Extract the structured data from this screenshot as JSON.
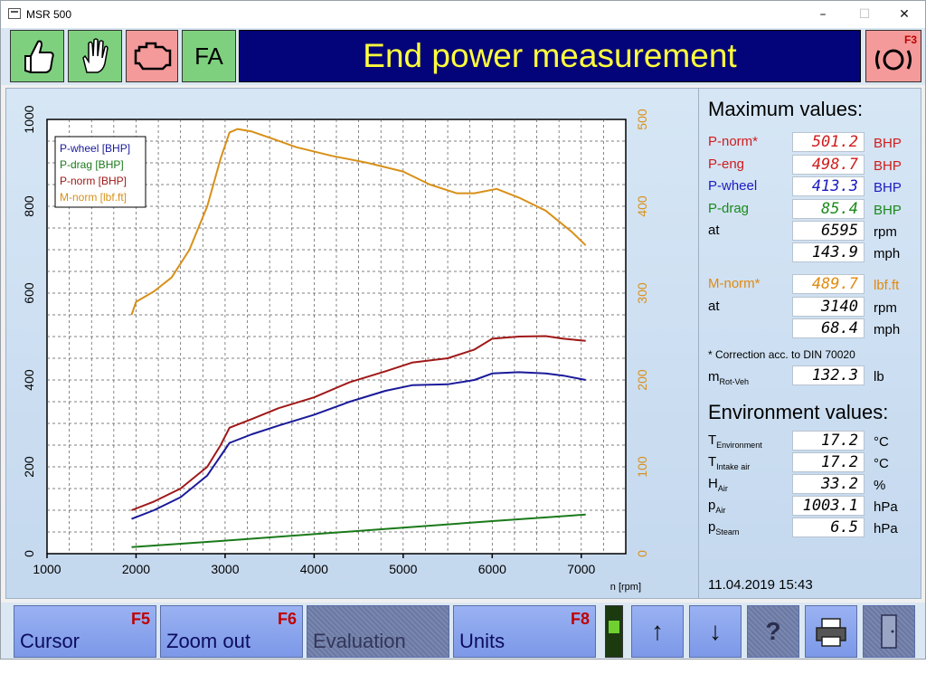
{
  "window": {
    "title": "MSR 500",
    "minimize": "–",
    "maximize": "☐",
    "close": "✕"
  },
  "toolbar": {
    "thumb_icon": "thumbs-up-icon",
    "hand_icon": "hand-icon",
    "engine_icon": "engine-warning-icon",
    "fa_label": "FA",
    "banner": "End power measurement",
    "brake_key": "F3",
    "brake_icon": "brake-icon"
  },
  "colors": {
    "wheel": "#1a1a9a",
    "drag": "#1a7a1a",
    "norm": "#a01818",
    "torque": "#d89018",
    "banner_bg": "#04047a",
    "banner_text": "#ffff3c"
  },
  "chart_data": {
    "type": "line",
    "xlabel": "n [rpm]",
    "x_ticks": [
      "1000",
      "2000",
      "3000",
      "4000",
      "5000",
      "6000",
      "7000"
    ],
    "y_left_ticks": [
      "0",
      "200",
      "400",
      "600",
      "800",
      "1000"
    ],
    "y_right_ticks": [
      "0",
      "100",
      "200",
      "300",
      "400",
      "500"
    ],
    "xlim": [
      1000,
      7500
    ],
    "ylim_left": [
      0,
      1000
    ],
    "ylim_right": [
      0,
      500
    ],
    "grid": true,
    "legend_placement": "top-left",
    "series": [
      {
        "name": "P-wheel [BHP]",
        "axis": "left",
        "color": "#1a1a9a",
        "x": [
          1950,
          2200,
          2500,
          2800,
          2950,
          3050,
          3300,
          3600,
          4000,
          4400,
          4800,
          5100,
          5500,
          5800,
          6000,
          6300,
          6600,
          6800,
          7050
        ],
        "y": [
          80,
          100,
          130,
          180,
          225,
          255,
          275,
          295,
          320,
          350,
          375,
          388,
          390,
          400,
          415,
          418,
          415,
          410,
          400
        ]
      },
      {
        "name": "P-drag [BHP]",
        "axis": "left",
        "color": "#1a7a1a",
        "x": [
          1950,
          3000,
          4000,
          5000,
          6000,
          7050
        ],
        "y": [
          15,
          30,
          45,
          60,
          75,
          90
        ]
      },
      {
        "name": "P-norm [BHP]",
        "axis": "left",
        "color": "#a01818",
        "x": [
          1950,
          2200,
          2500,
          2800,
          2950,
          3050,
          3300,
          3600,
          4000,
          4400,
          4800,
          5100,
          5500,
          5800,
          6000,
          6300,
          6600,
          6800,
          7050
        ],
        "y": [
          100,
          120,
          150,
          200,
          250,
          290,
          310,
          335,
          360,
          395,
          420,
          440,
          450,
          470,
          495,
          500,
          501,
          495,
          490
        ]
      },
      {
        "name": "M-norm [lbf.ft]",
        "axis": "right",
        "color": "#d89018",
        "x": [
          1950,
          2000,
          2200,
          2400,
          2600,
          2800,
          2950,
          3050,
          3140,
          3300,
          3500,
          3800,
          4200,
          4600,
          5000,
          5300,
          5600,
          5800,
          6050,
          6300,
          6600,
          6900,
          7050
        ],
        "y": [
          275,
          290,
          302,
          318,
          350,
          400,
          455,
          485,
          489,
          486,
          479,
          468,
          458,
          450,
          440,
          425,
          415,
          415,
          420,
          410,
          395,
          370,
          355
        ]
      }
    ]
  },
  "panel": {
    "max_title": "Maximum values:",
    "rows": [
      {
        "label": "P-norm*",
        "value": "501.2",
        "unit": "BHP",
        "color": "#d01c1c"
      },
      {
        "label": "P-eng",
        "value": "498.7",
        "unit": "BHP",
        "color": "#d01c1c"
      },
      {
        "label": "P-wheel",
        "value": "413.3",
        "unit": "BHP",
        "color": "#1c1cc0"
      },
      {
        "label": "P-drag",
        "value": "85.4",
        "unit": "BHP",
        "color": "#1a8a1a"
      },
      {
        "label": "at",
        "value": "6595",
        "unit": "rpm",
        "color": "#000000"
      },
      {
        "label": "",
        "value": "143.9",
        "unit": "mph",
        "color": "#000000"
      },
      {
        "label": "M-norm*",
        "value": "489.7",
        "unit": "lbf.ft",
        "color": "#e08a10"
      },
      {
        "label": "at",
        "value": "3140",
        "unit": "rpm",
        "color": "#000000"
      },
      {
        "label": "",
        "value": "68.4",
        "unit": "mph",
        "color": "#000000"
      }
    ],
    "note": "* Correction acc. to DIN 70020",
    "mass": {
      "label": "m",
      "sub": "Rot-Veh",
      "value": "132.3",
      "unit": "lb"
    },
    "env_title": "Environment values:",
    "env": [
      {
        "label": "T",
        "sub": "Environment",
        "value": "17.2",
        "unit": "°C"
      },
      {
        "label": "T",
        "sub": "Intake air",
        "value": "17.2",
        "unit": "°C"
      },
      {
        "label": "H",
        "sub": "Air",
        "value": "33.2",
        "unit": "%"
      },
      {
        "label": "p",
        "sub": "Air",
        "value": "1003.1",
        "unit": "hPa"
      },
      {
        "label": "p",
        "sub": "Steam",
        "value": "6.5",
        "unit": "hPa"
      }
    ],
    "datetime": "11.04.2019   15:43"
  },
  "bottom": {
    "cursor": {
      "label": "Cursor",
      "key": "F5"
    },
    "zoom": {
      "label": "Zoom out",
      "key": "F6"
    },
    "evaluation": {
      "label": "Evaluation"
    },
    "units": {
      "label": "Units",
      "key": "F8"
    },
    "up": "↑",
    "down": "↓",
    "help": "?",
    "print_icon": "printer-icon",
    "exit_icon": "door-icon"
  }
}
